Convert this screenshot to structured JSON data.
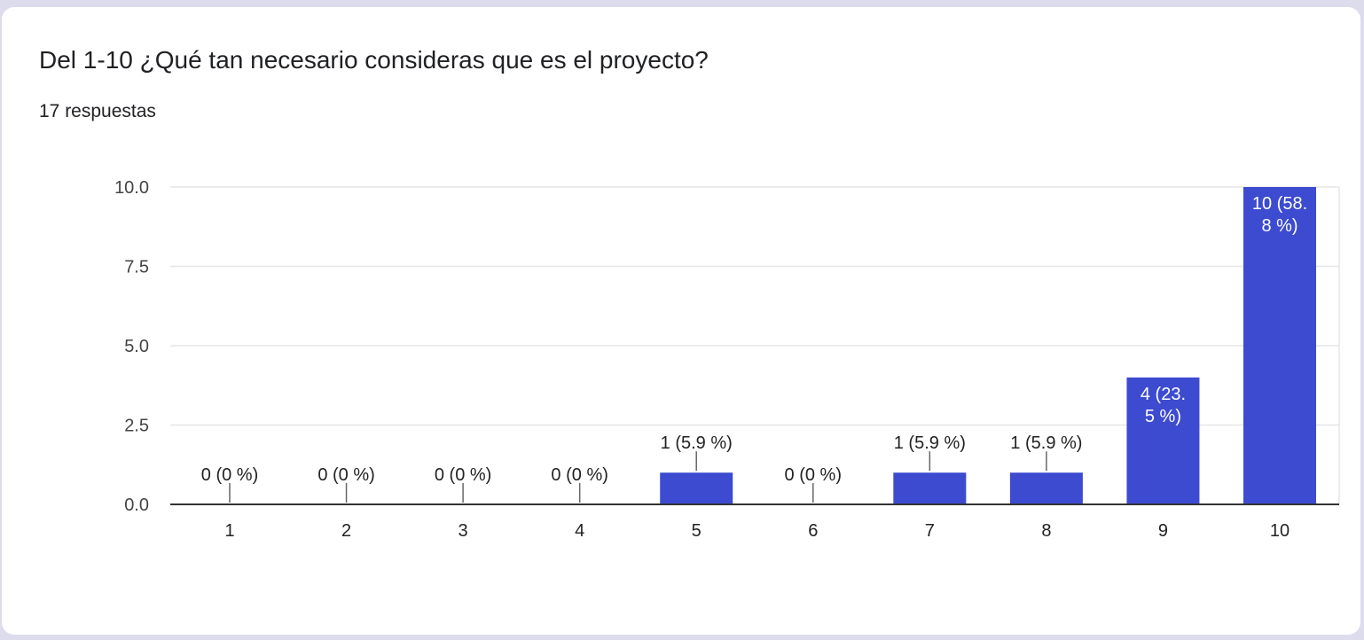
{
  "header": {
    "title": "Del 1-10 ¿Qué tan necesario consideras que es el proyecto?",
    "subtitle": "17 respuestas"
  },
  "colors": {
    "bar": "#3c4bcf",
    "grid": "#e6e6e6",
    "axis": "#333333",
    "card": "#ffffff",
    "page": "#dcdcec"
  },
  "chart_data": {
    "type": "bar",
    "categories": [
      "1",
      "2",
      "3",
      "4",
      "5",
      "6",
      "7",
      "8",
      "9",
      "10"
    ],
    "values": [
      0,
      0,
      0,
      0,
      1,
      0,
      1,
      1,
      4,
      10
    ],
    "data_labels": [
      [
        "0 (0 %)"
      ],
      [
        "0 (0 %)"
      ],
      [
        "0 (0 %)"
      ],
      [
        "0 (0 %)"
      ],
      [
        "1 (5.9 %)"
      ],
      [
        "0 (0 %)"
      ],
      [
        "1 (5.9 %)"
      ],
      [
        "1 (5.9 %)"
      ],
      [
        "4 (23.",
        "5 %)"
      ],
      [
        "10 (58.",
        "8 %)"
      ]
    ],
    "yticks": [
      "0.0",
      "2.5",
      "5.0",
      "7.5",
      "10.0"
    ],
    "ylim": [
      0,
      10
    ],
    "grid": true,
    "legend": "none"
  }
}
